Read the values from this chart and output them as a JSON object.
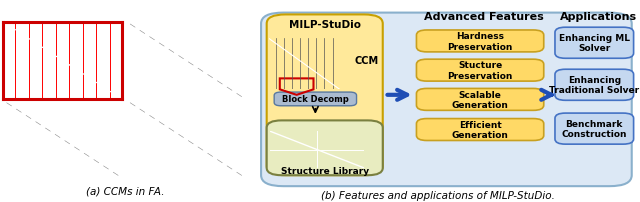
{
  "left_caption": "(a) CCMs in FA.",
  "right_caption": "(b) Features and applications of MILP-StuDio.",
  "milp_studio_title": "MILP-StuDio",
  "ccm_label": "CCM",
  "block_decomp_label": "Block Decomp",
  "structure_library_label": "Structure Library",
  "advanced_features_title": "Advanced Features",
  "advanced_features": [
    "Hardness\nPreservation",
    "Stucture\nPreservation",
    "Scalable\nGeneration",
    "Efficient\nGeneration"
  ],
  "applications_title": "Applications",
  "applications": [
    "Enhancing ML\nSolver",
    "Enhancing\nTraditional Solver",
    "Benchmark\nConstruction"
  ],
  "bg_color": "#ffffff",
  "milp_box_bg": "#ffe99a",
  "milp_box_border": "#c8a000",
  "advanced_box_bg": "#ffd966",
  "advanced_box_border": "#c8a020",
  "app_box_bg": "#c5d8f0",
  "app_box_border": "#4472c4",
  "outer_box_bg": "#dce8f5",
  "outer_box_border": "#8ab0cc",
  "arrow_color": "#1f4eb5",
  "struct_lib_bg": "#e8ecc0",
  "struct_lib_border": "#7a8040",
  "block_decomp_bg": "#aabbd0",
  "block_decomp_border": "#5878a0",
  "red_color": "#cc0000"
}
